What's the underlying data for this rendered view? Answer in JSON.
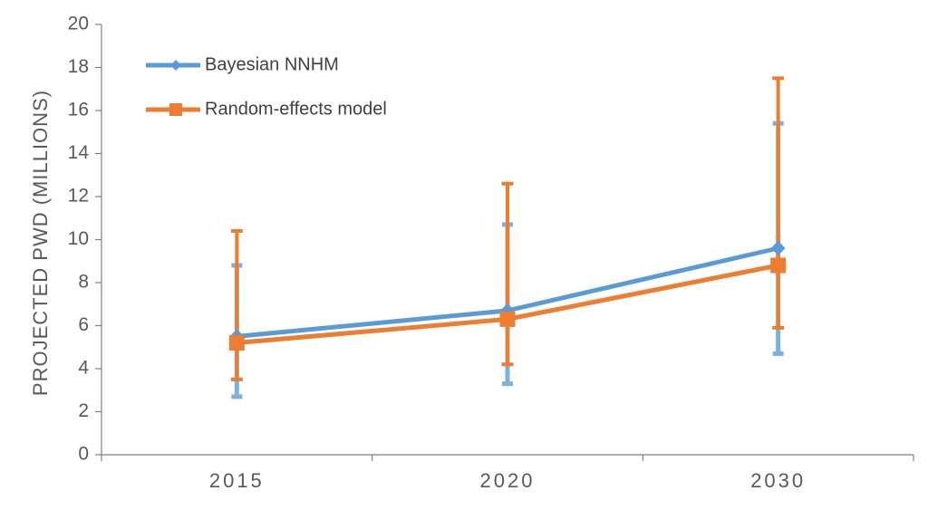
{
  "chart_data": {
    "type": "line",
    "title": "",
    "xlabel": "",
    "ylabel": "PROJECTED PWD (MILLIONS)",
    "ylim": [
      0,
      20
    ],
    "yticks": [
      0,
      2,
      4,
      6,
      8,
      10,
      12,
      14,
      16,
      18,
      20
    ],
    "categories": [
      "2015",
      "2020",
      "2030"
    ],
    "grid": false,
    "legend_position": "top-left",
    "series": [
      {
        "name": "Bayesian NNHM",
        "color": "#5B9BD5",
        "errorbar_color": "#7EB0DE",
        "marker": "diamond",
        "values": [
          5.5,
          6.7,
          9.6
        ],
        "lower": [
          2.7,
          3.3,
          4.7
        ],
        "upper": [
          8.8,
          10.7,
          15.4
        ]
      },
      {
        "name": "Random-effects model",
        "color": "#ED7D31",
        "errorbar_color": "#ED7D31",
        "marker": "square",
        "values": [
          5.2,
          6.3,
          8.8
        ],
        "lower": [
          3.5,
          4.2,
          5.9
        ],
        "upper": [
          10.4,
          12.6,
          17.5
        ]
      }
    ]
  }
}
